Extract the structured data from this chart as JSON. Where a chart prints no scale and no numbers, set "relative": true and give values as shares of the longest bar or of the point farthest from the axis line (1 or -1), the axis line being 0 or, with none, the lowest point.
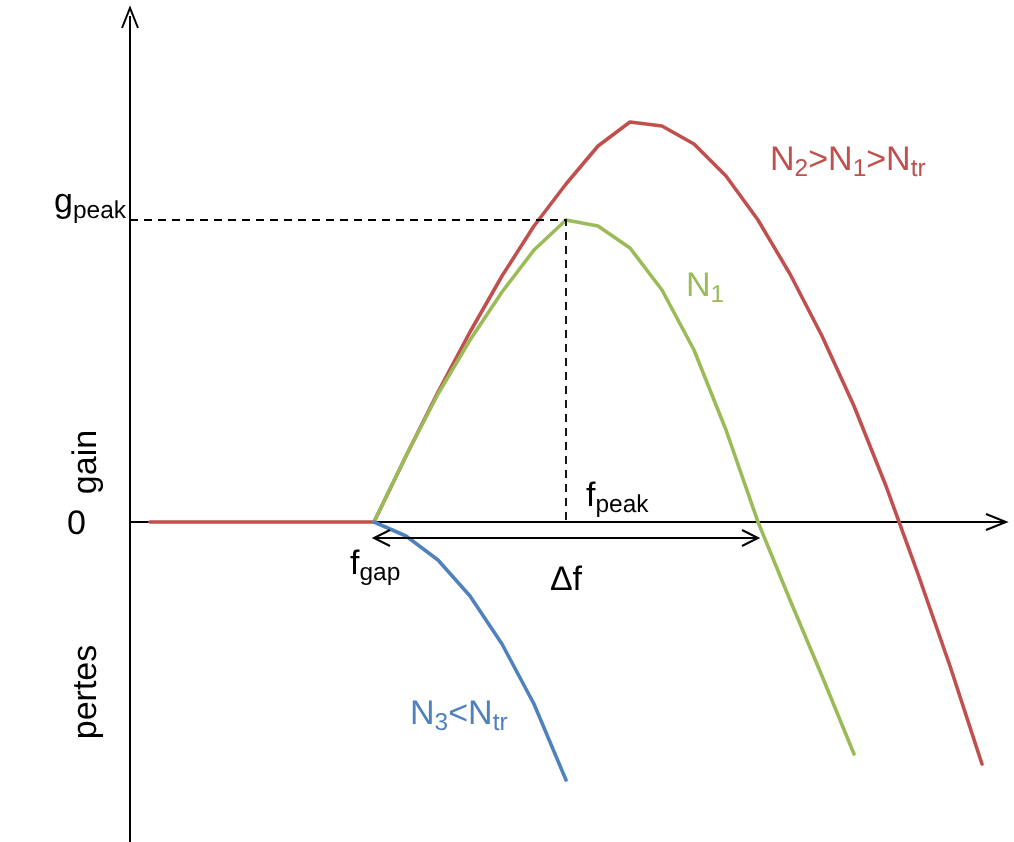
{
  "chart_data": {
    "type": "line",
    "relative": true,
    "ylabel": "gain",
    "categories": [
      null,
      null,
      null,
      null,
      null,
      null,
      null,
      null,
      null,
      null,
      null,
      null,
      null,
      null,
      null,
      null,
      null,
      null,
      null,
      null,
      null,
      null,
      null,
      null,
      null,
      null,
      null
    ],
    "series": [
      {
        "name": "N$_{2}$>N$_{1}$>N$_{tr}$",
        "color": "#c0504d",
        "values": [
          0,
          0,
          0,
          0,
          0,
          0,
          0,
          0,
          0.165,
          0.325,
          0.475,
          0.615,
          0.74,
          0.845,
          0.94,
          1,
          0.99,
          0.945,
          0.865,
          0.755,
          0.62,
          0.465,
          0.29,
          0.09,
          -0.13,
          -0.36,
          -0.605
        ]
      },
      {
        "name": "N$_{1}$",
        "color": "#9bbb59",
        "values": [
          null,
          null,
          null,
          null,
          null,
          null,
          null,
          0,
          0.165,
          0.32,
          0.455,
          0.575,
          0.68,
          0.755,
          0.74,
          0.685,
          0.58,
          0.43,
          0.23,
          0,
          -0.195,
          -0.385,
          -0.58,
          null,
          null,
          null,
          null
        ]
      },
      {
        "name": "N$_{3}$<N$_{tr}$",
        "color": "#4f81bd",
        "values": [
          null,
          null,
          null,
          null,
          null,
          null,
          null,
          0,
          -0.035,
          -0.095,
          -0.185,
          -0.305,
          -0.455,
          -0.645,
          null,
          null,
          null,
          null,
          null,
          null,
          null,
          null,
          null,
          null,
          null,
          null,
          null
        ]
      }
    ],
    "annotations": [
      "0",
      "g$_{peak}$",
      "f$_{gap}$",
      "f$_{peak}$",
      "Δf",
      "pertes"
    ],
    "line_style": "solid"
  }
}
